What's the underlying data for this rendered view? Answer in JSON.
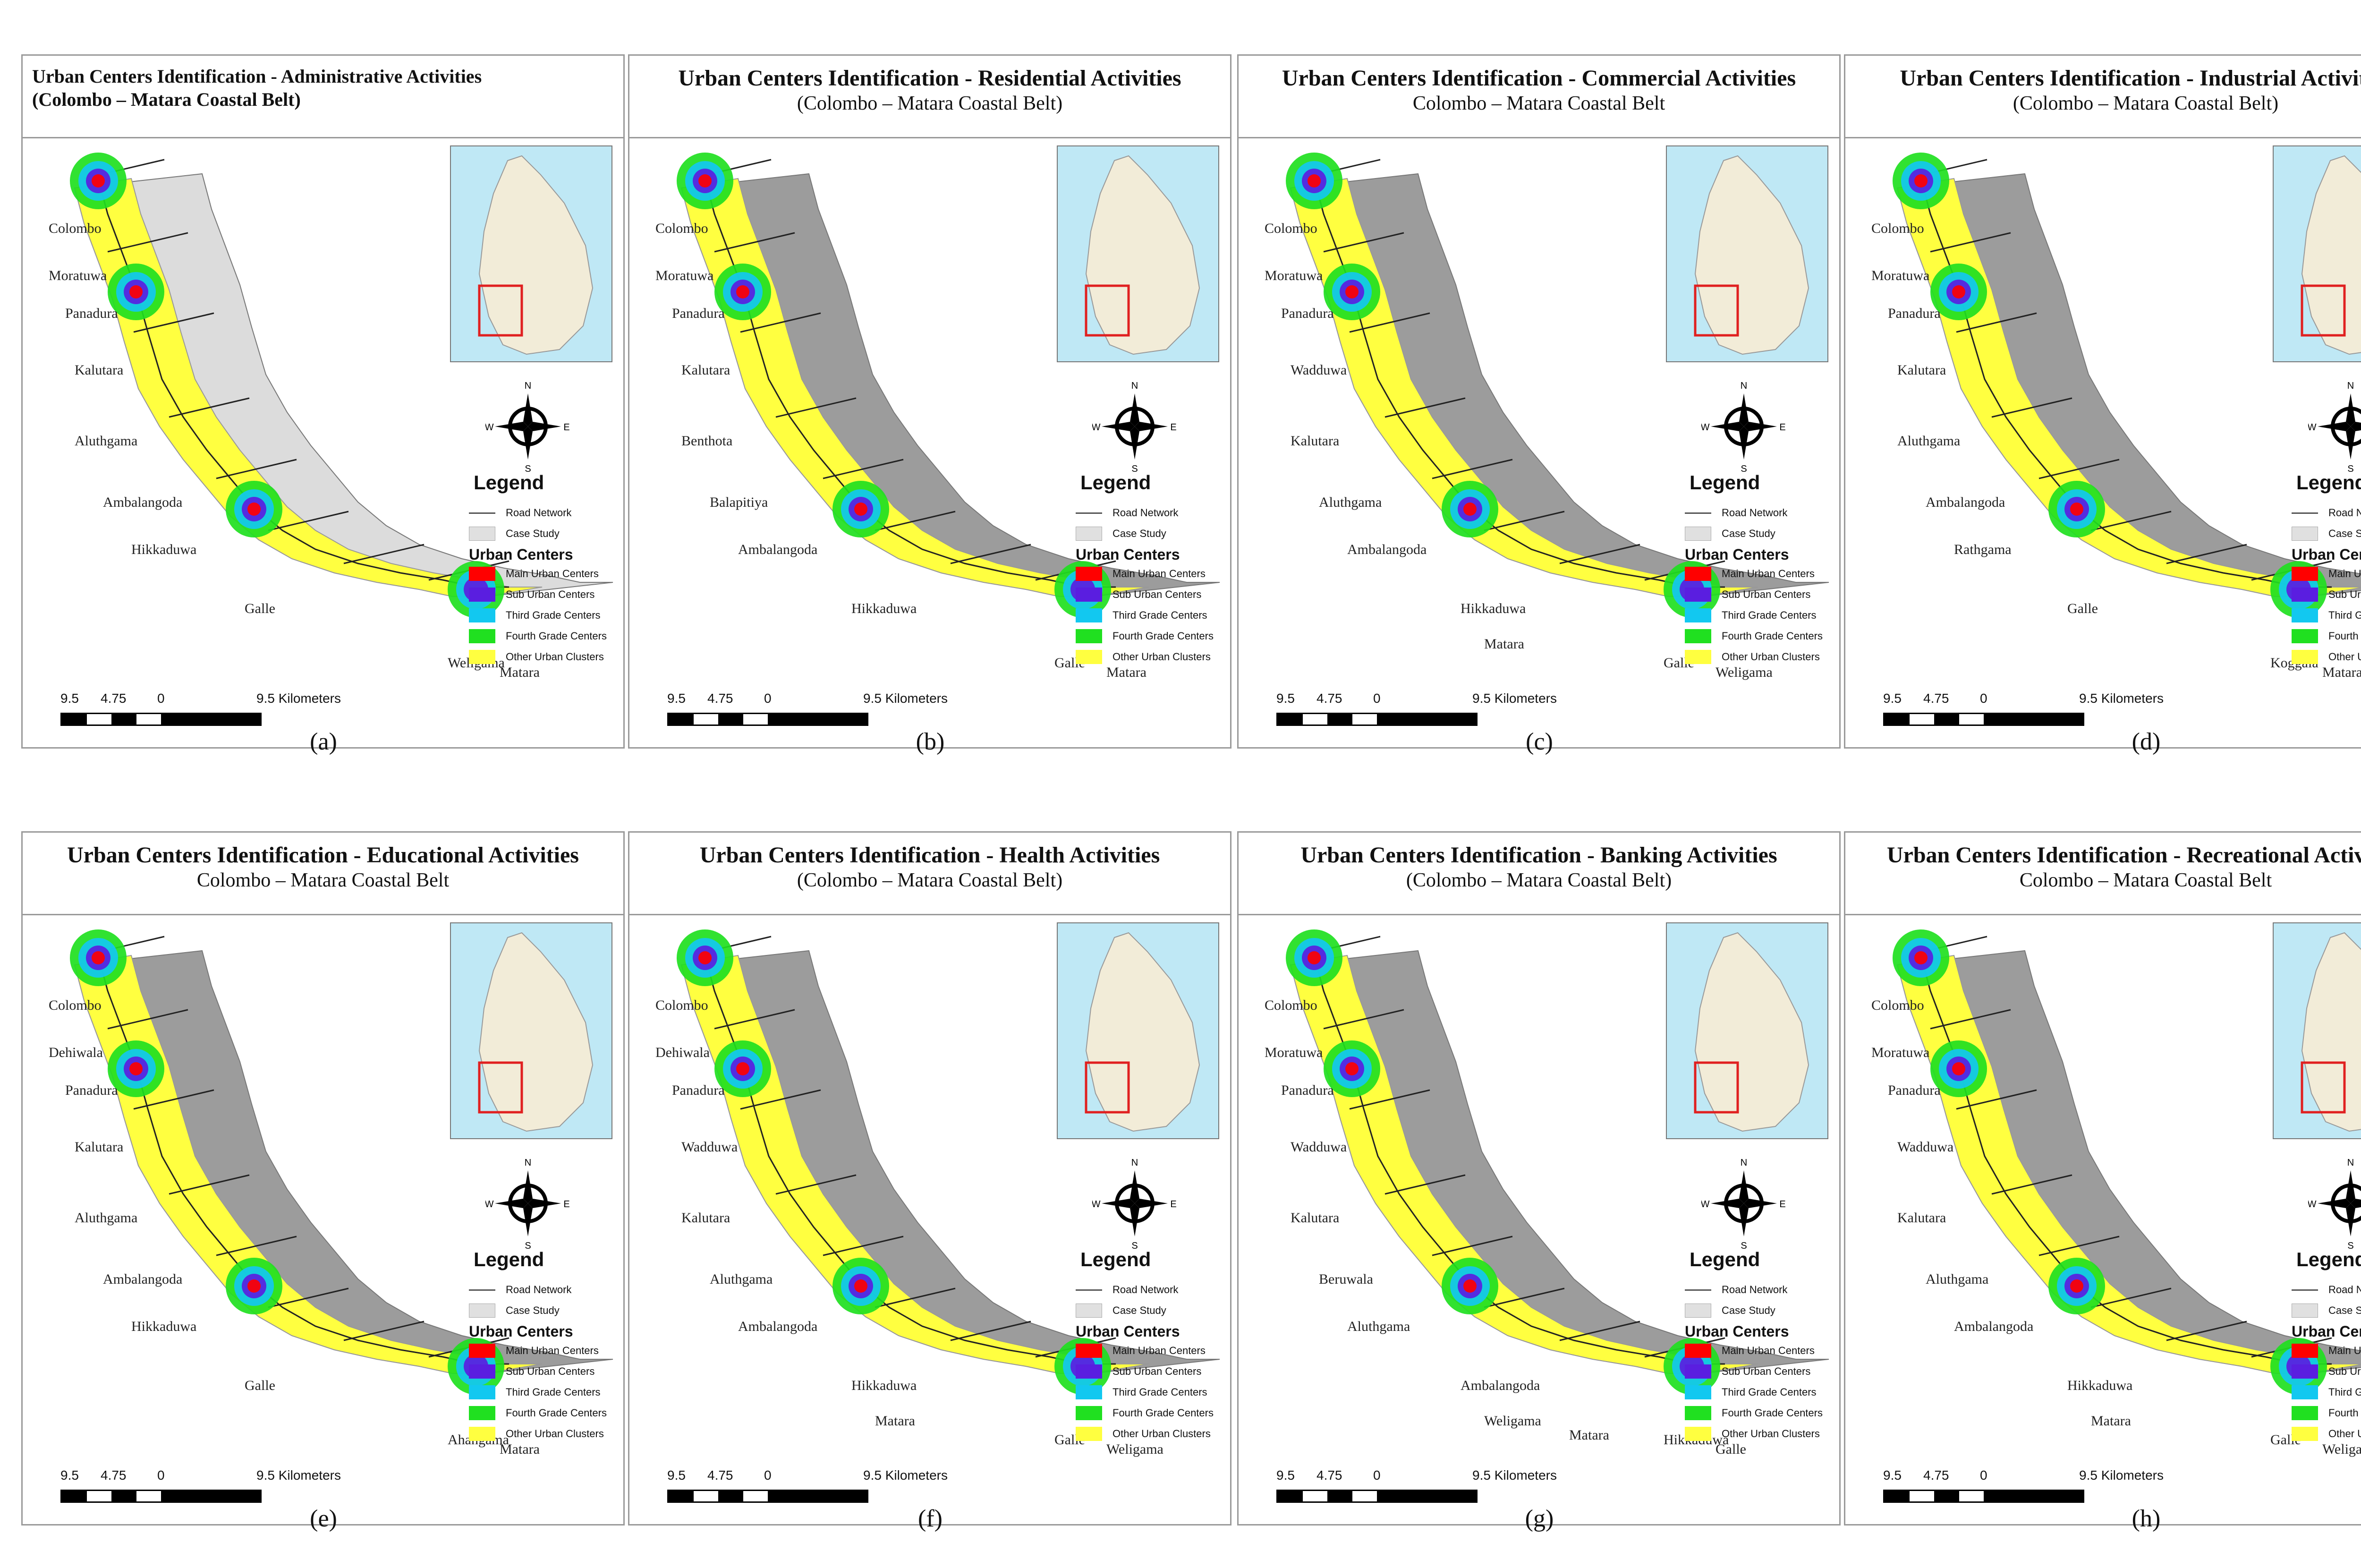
{
  "legend": {
    "title": "Legend",
    "road_label": "Road Network",
    "case_label": "Case Study",
    "urban_header": "Urban Centers",
    "items": [
      {
        "label": "Main Urban Centers",
        "color": "#ff0000"
      },
      {
        "label": "Sub Urban Centers",
        "color": "#5a1ee0"
      },
      {
        "label": "Third Grade Centers",
        "color": "#12c8f0"
      },
      {
        "label": "Fourth Grade Centers",
        "color": "#20e020"
      },
      {
        "label": "Other Urban Clusters",
        "color": "#ffff40"
      }
    ]
  },
  "scale": {
    "l1": "9.5",
    "l2": "4.75",
    "l3": "0",
    "l4": "9.5 Kilometers"
  },
  "compass": {
    "n": "N",
    "s": "S",
    "e": "E",
    "w": "W"
  },
  "panels": [
    {
      "caption": "(a)",
      "title": "Urban Centers Identification - Administrative Activities",
      "subtitle": "(Colombo – Matara Coastal Belt)",
      "cities": [
        "Colombo",
        "Moratuwa",
        "Panadura",
        "Kalutara",
        "Aluthgama",
        "Ambalangoda",
        "Hikkaduwa",
        "Galle",
        "Weligama",
        "Matara"
      ]
    },
    {
      "caption": "(b)",
      "title": "Urban Centers Identification - Residential Activities",
      "subtitle": "(Colombo – Matara Coastal Belt)",
      "cities": [
        "Colombo",
        "Moratuwa",
        "Panadura",
        "Kalutara",
        "Benthota",
        "Balapitiya",
        "Ambalangoda",
        "Hikkaduwa",
        "Galle",
        "Matara"
      ]
    },
    {
      "caption": "(c)",
      "title": "Urban Centers Identification - Commercial Activities",
      "subtitle": "Colombo – Matara Coastal Belt",
      "cities": [
        "Colombo",
        "Moratuwa",
        "Panadura",
        "Wadduwa",
        "Kalutara",
        "Aluthgama",
        "Ambalangoda",
        "Hikkaduwa",
        "Galle",
        "Weligama",
        "Matara"
      ]
    },
    {
      "caption": "(d)",
      "title": "Urban Centers Identification - Industrial Activities",
      "subtitle": "(Colombo – Matara Coastal Belt)",
      "cities": [
        "Colombo",
        "Moratuwa",
        "Panadura",
        "Kalutara",
        "Aluthgama",
        "Ambalangoda",
        "Rathgama",
        "Galle",
        "Koggala",
        "Matara"
      ]
    },
    {
      "caption": "(e)",
      "title": "Urban Centers Identification - Educational Activities",
      "subtitle": "Colombo – Matara Coastal Belt",
      "cities": [
        "Colombo",
        "Dehiwala",
        "Panadura",
        "Kalutara",
        "Aluthgama",
        "Ambalangoda",
        "Hikkaduwa",
        "Galle",
        "Ahangama",
        "Matara"
      ]
    },
    {
      "caption": "(f)",
      "title": "Urban Centers Identification - Health Activities",
      "subtitle": "(Colombo – Matara Coastal Belt)",
      "cities": [
        "Colombo",
        "Dehiwala",
        "Panadura",
        "Wadduwa",
        "Kalutara",
        "Aluthgama",
        "Ambalangoda",
        "Hikkaduwa",
        "Galle",
        "Weligama",
        "Matara"
      ]
    },
    {
      "caption": "(g)",
      "title": "Urban Centers Identification - Banking Activities",
      "subtitle": "(Colombo – Matara Coastal Belt)",
      "cities": [
        "Colombo",
        "Moratuwa",
        "Panadura",
        "Wadduwa",
        "Kalutara",
        "Beruwala",
        "Aluthgama",
        "Ambalangoda",
        "Hikkaduwa",
        "Galle",
        "Weligama",
        "Matara"
      ]
    },
    {
      "caption": "(h)",
      "title": "Urban Centers Identification - Recreational Activities",
      "subtitle": "Colombo – Matara Coastal Belt",
      "cities": [
        "Colombo",
        "Moratuwa",
        "Panadura",
        "Wadduwa",
        "Kalutara",
        "Aluthgama",
        "Ambalangoda",
        "Hikkaduwa",
        "Galle",
        "Weligama",
        "Matara"
      ]
    }
  ]
}
